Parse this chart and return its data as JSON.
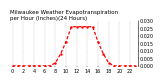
{
  "title": "Milwaukee Weather Evapotranspiration per Hour (Inches)(24 Hours)",
  "hours": [
    0,
    1,
    2,
    3,
    4,
    5,
    6,
    7,
    8,
    9,
    10,
    11,
    12,
    13,
    14,
    15,
    16,
    17,
    18,
    19,
    20,
    21,
    22,
    23
  ],
  "values": [
    0.0,
    0.0,
    0.0,
    0.0,
    0.0,
    0.0,
    0.0,
    0.0,
    0.002,
    0.008,
    0.016,
    0.026,
    0.026,
    0.026,
    0.026,
    0.026,
    0.016,
    0.008,
    0.002,
    0.0,
    0.0,
    0.0,
    0.0,
    0.0
  ],
  "line_color": "#ff0000",
  "background_color": "#ffffff",
  "grid_color": "#aaaaaa",
  "xlim": [
    -0.5,
    23.5
  ],
  "ylim": [
    0,
    0.03
  ],
  "ytick_values": [
    0.0,
    0.005,
    0.01,
    0.015,
    0.02,
    0.025,
    0.03
  ],
  "ytick_labels": [
    "0.000",
    "0.005",
    "0.010",
    "0.015",
    "0.020",
    "0.025",
    "0.030"
  ],
  "xtick_values": [
    0,
    2,
    4,
    6,
    8,
    10,
    12,
    14,
    16,
    18,
    20,
    22
  ],
  "ylabel_fontsize": 3.5,
  "xlabel_fontsize": 3.5,
  "title_fontsize": 4.0,
  "linewidth": 0.9,
  "markersize": 1.5
}
